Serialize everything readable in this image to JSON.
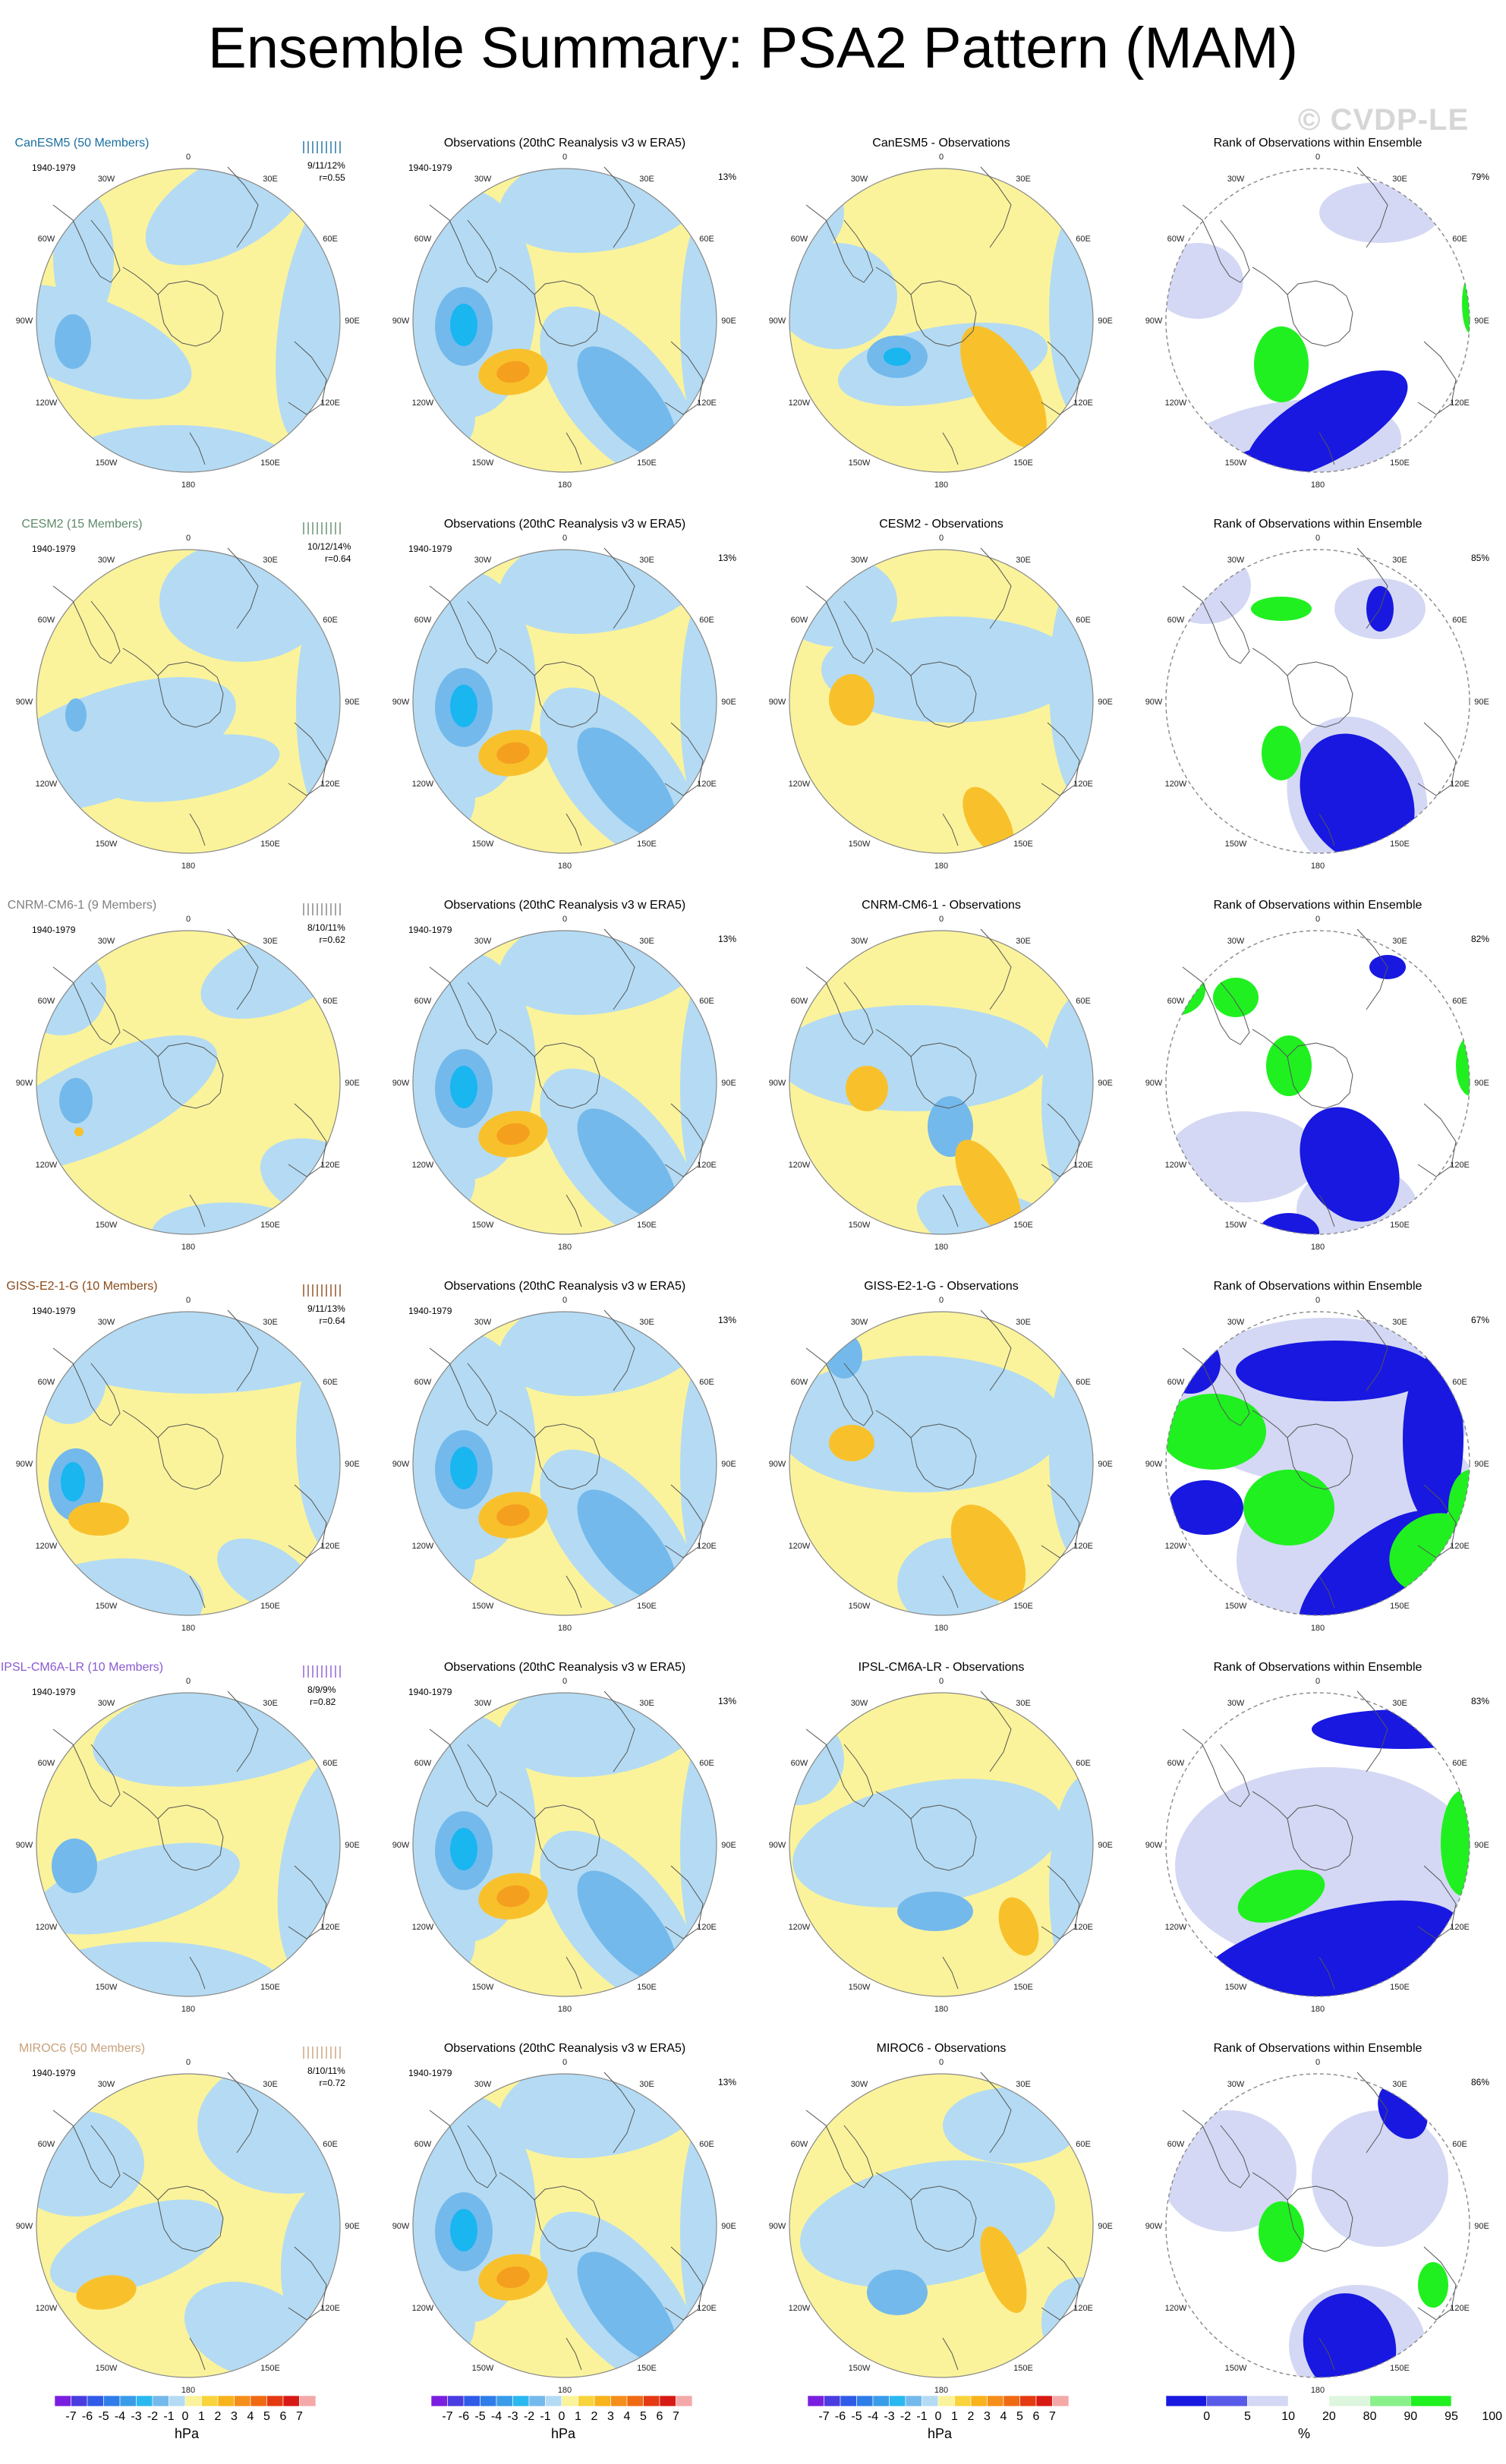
{
  "title": "Ensemble Summary: PSA2 Pattern (MAM)",
  "watermark": "© CVDP-LE",
  "period": "1940-1979",
  "obs_title": "Observations (20thC Reanalysis v3 w ERA5)",
  "obs_pct": "13%",
  "rank_title": "Rank of Observations within Ensemble",
  "lon_labels": [
    "0",
    "30E",
    "60E",
    "90E",
    "120E",
    "150E",
    "180",
    "150W",
    "120W",
    "90W",
    "60W",
    "30W"
  ],
  "colors": {
    "fill_yellow": "#fbf39b",
    "fill_lightblue": "#b4dbf3",
    "fill_blue": "#74b9ec",
    "fill_cyan": "#19b6f0",
    "fill_orange": "#f8c12c",
    "fill_darkorange": "#f59f1f",
    "rank_green": "#20f020",
    "rank_blue": "#1818e0",
    "rank_lightblue": "#d4d8f4"
  },
  "rows": [
    {
      "model": "CanESM5 (50 Members)",
      "model_color": "#1a6fa0",
      "stat1": "9/11/12%",
      "stat2": "r=0.55",
      "diff_title": "CanESM5 - Observations",
      "rank_pct": "79%"
    },
    {
      "model": "CESM2 (15 Members)",
      "model_color": "#5f8a6a",
      "stat1": "10/12/14%",
      "stat2": "r=0.64",
      "diff_title": "CESM2 - Observations",
      "rank_pct": "85%"
    },
    {
      "model": "CNRM-CM6-1 (9 Members)",
      "model_color": "#7f7f7f",
      "stat1": "8/10/11%",
      "stat2": "r=0.62",
      "diff_title": "CNRM-CM6-1 - Observations",
      "rank_pct": "82%"
    },
    {
      "model": "GISS-E2-1-G (10 Members)",
      "model_color": "#8a4a1a",
      "stat1": "9/11/13%",
      "stat2": "r=0.64",
      "diff_title": "GISS-E2-1-G - Observations",
      "rank_pct": "67%"
    },
    {
      "model": "IPSL-CM6A-LR (10 Members)",
      "model_color": "#8a5ad0",
      "stat1": "8/9/9%",
      "stat2": "r=0.82",
      "diff_title": "IPSL-CM6A-LR - Observations",
      "rank_pct": "83%"
    },
    {
      "model": "MIROC6 (50 Members)",
      "model_color": "#c8a07a",
      "stat1": "8/10/11%",
      "stat2": "r=0.72",
      "diff_title": "MIROC6 - Observations",
      "rank_pct": "86%"
    }
  ],
  "colorbar_hpa": {
    "labels": [
      "-7",
      "-6",
      "-5",
      "-4",
      "-3",
      "-2",
      "-1",
      "0",
      "1",
      "2",
      "3",
      "4",
      "5",
      "6",
      "7"
    ],
    "colors": [
      "#7a1ee0",
      "#4a3ce0",
      "#2f5be8",
      "#2f7de8",
      "#3a9ce8",
      "#2ab8f0",
      "#74b9ec",
      "#b4dbf3",
      "#fbf39b",
      "#f8d33c",
      "#f8b31c",
      "#f58e1a",
      "#f06a14",
      "#e43a12",
      "#d81a14",
      "#f4a8a8"
    ],
    "unit": "hPa"
  },
  "colorbar_rank": {
    "labels": [
      "0",
      "5",
      "10",
      "20",
      "80",
      "90",
      "95",
      "100"
    ],
    "colors": [
      "#1818e0",
      "#5a5ae8",
      "#d4d8f4",
      "#ffffff",
      "#ddf6dd",
      "#8af08a",
      "#20f020"
    ],
    "unit": "%"
  },
  "chart_data": {
    "type": "heatmap",
    "description_fields": "polar-stereographic Southern Hemisphere maps of PSA2 sea-level-pressure pattern regressions",
    "units": "hPa",
    "color_range": [
      -7,
      7
    ],
    "rank_units": "%",
    "rank_levels": [
      0,
      5,
      10,
      20,
      80,
      90,
      95,
      100
    ],
    "series": [
      {
        "name": "CanESM5 (50 Members)",
        "pattern_correlation": 0.55,
        "stats": "9/11/12%",
        "rank_pct": 79
      },
      {
        "name": "CESM2 (15 Members)",
        "pattern_correlation": 0.64,
        "stats": "10/12/14%",
        "rank_pct": 85
      },
      {
        "name": "CNRM-CM6-1 (9 Members)",
        "pattern_correlation": 0.62,
        "stats": "8/10/11%",
        "rank_pct": 82
      },
      {
        "name": "GISS-E2-1-G (10 Members)",
        "pattern_correlation": 0.64,
        "stats": "9/11/13%",
        "rank_pct": 67
      },
      {
        "name": "IPSL-CM6A-LR (10 Members)",
        "pattern_correlation": 0.82,
        "stats": "8/9/9%",
        "rank_pct": 83
      },
      {
        "name": "MIROC6 (50 Members)",
        "pattern_correlation": 0.72,
        "stats": "8/10/11%",
        "rank_pct": 86
      }
    ],
    "observations_pct": 13
  }
}
